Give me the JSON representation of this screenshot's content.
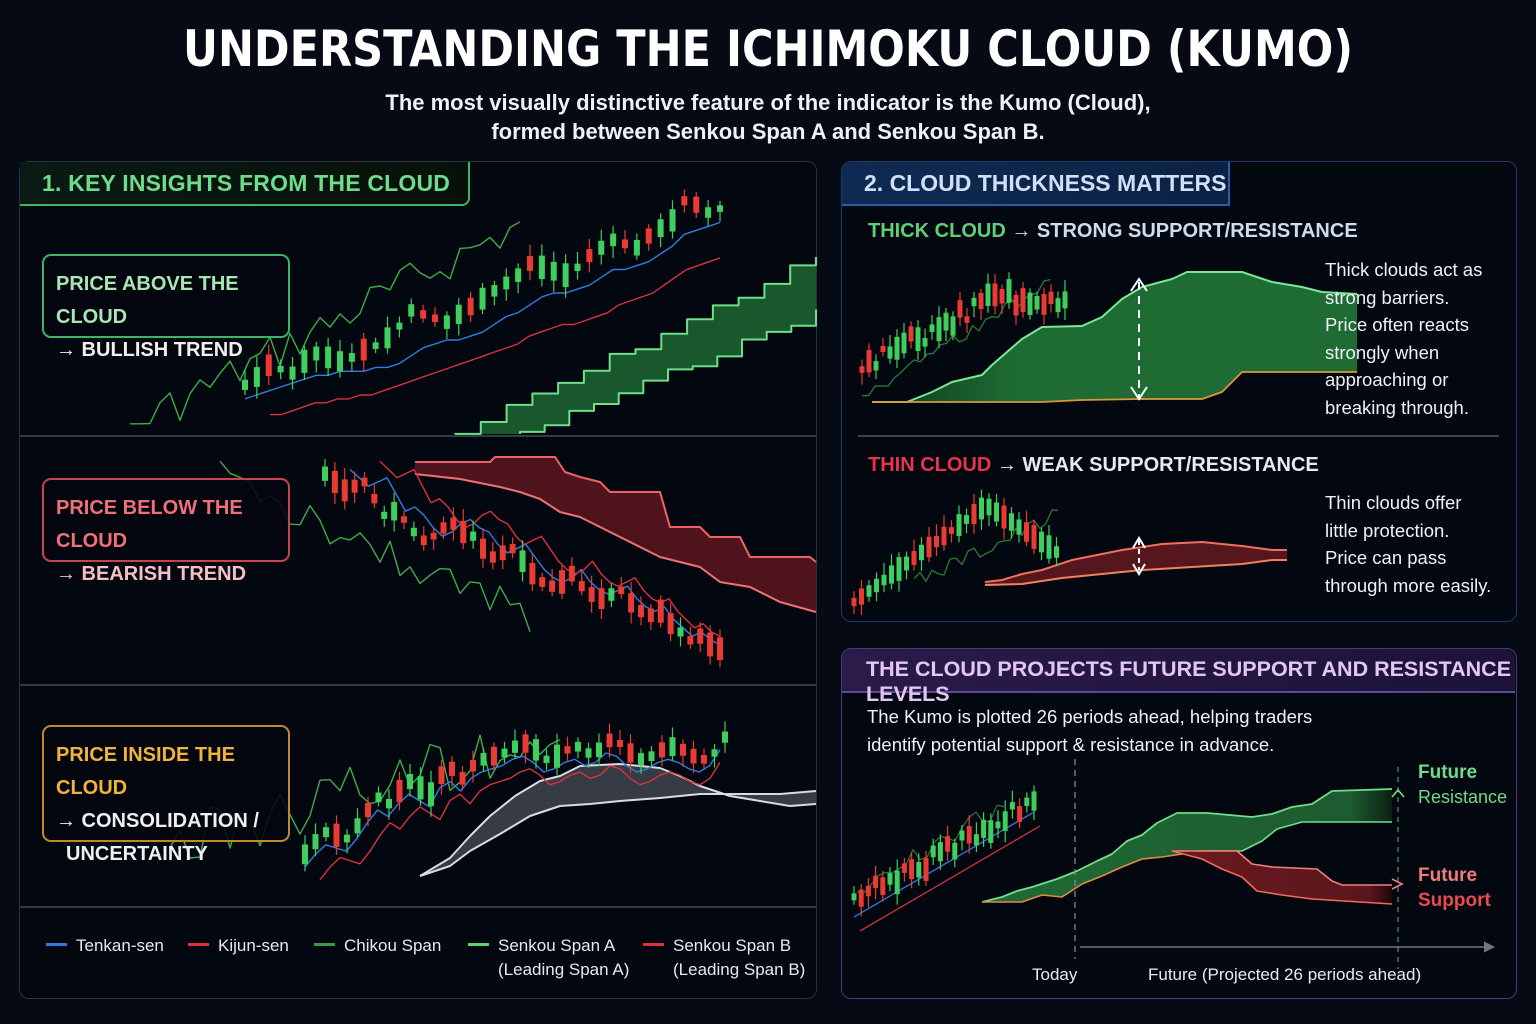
{
  "header": {
    "title": "UNDERSTANDING THE ICHIMOKU CLOUD (KUMO)",
    "subtitle_line1": "The most visually distinctive feature of the indicator is the Kumo (Cloud),",
    "subtitle_line2": "formed between Senkou Span A and Senkou Span B."
  },
  "section1": {
    "title": "1. KEY INSIGHTS FROM THE CLOUD",
    "insights": [
      {
        "line1": "PRICE ABOVE THE CLOUD",
        "line2": "→ BULLISH TREND",
        "color": "#a8e6b4",
        "border": "#3bb567"
      },
      {
        "line1": "PRICE BELOW THE CLOUD",
        "line2": "→ BEARISH TREND",
        "color": "#f0707a",
        "border": "#c7434e"
      },
      {
        "line1": "PRICE INSIDE THE CLOUD",
        "line2": "→ CONSOLIDATION /",
        "line3": "UNCERTAINTY",
        "color": "#f2b33a",
        "border": "#c08a2c"
      }
    ],
    "legend": [
      {
        "label": "Tenkan-sen",
        "color": "#2f7de1"
      },
      {
        "label": "Kijun-sen",
        "color": "#d8323e"
      },
      {
        "label": "Chikou Span",
        "color": "#3a9a4a"
      },
      {
        "label": "Senkou Span A",
        "sub": "(Leading Span A)",
        "color": "#5ccf77"
      },
      {
        "label": "Senkou Span B",
        "sub": "(Leading Span B)",
        "color": "#e0323e"
      }
    ]
  },
  "section2": {
    "title": "2. CLOUD THICKNESS MATTERS",
    "thick": {
      "heading_colored": "THICK CLOUD",
      "heading_rest": "→ STRONG SUPPORT/RESISTANCE",
      "desc": [
        "Thick clouds act as",
        "strong barriers.",
        "Price often reacts",
        "strongly when",
        "approaching or",
        "breaking through."
      ]
    },
    "thin": {
      "heading_colored": "THIN CLOUD",
      "heading_rest": "→ WEAK SUPPORT/RESISTANCE",
      "desc": [
        "Thin clouds offer",
        "little protection.",
        "Price can pass",
        "through more easily."
      ]
    }
  },
  "section3": {
    "title": "THE CLOUD PROJECTS FUTURE SUPPORT AND RESISTANCE LEVELS",
    "desc_line1": "The Kumo is plotted 26 periods ahead, helping traders",
    "desc_line2": "identify potential support & resistance in advance.",
    "today_label": "Today",
    "future_label": "Future (Projected 26 periods ahead)",
    "resistance_label_1": "Future",
    "resistance_label_2": "Resistance",
    "support_label_1": "Future",
    "support_label_2": "Support"
  },
  "colors": {
    "bull": "#3ecf5e",
    "bear": "#ea3a34",
    "tenkan": "#2f7de1",
    "kijun": "#d8323e",
    "chikou": "#3fae4a",
    "cloud_green": "#1f6b34",
    "cloud_red": "#6a1a20",
    "cloud_gray": "#4a4e58"
  },
  "chart_data": [
    {
      "type": "line",
      "title": "Price Above the Cloud — Bullish Trend",
      "note": "Illustrative candlestick + Ichimoku lines, trending upward; cloud (green) below price",
      "x": [
        0,
        1,
        2,
        3,
        4,
        5,
        6,
        7,
        8,
        9,
        10,
        11,
        12,
        13,
        14,
        15,
        16,
        17,
        18,
        19,
        20,
        21,
        22,
        23,
        24,
        25,
        26,
        27,
        28,
        29,
        30,
        31,
        32,
        33,
        34,
        35,
        36,
        37,
        38,
        39,
        40
      ],
      "series": [
        {
          "name": "Close",
          "values": [
            10,
            12,
            15,
            14,
            13,
            16,
            18,
            17,
            16,
            17,
            19,
            20,
            22,
            25,
            29,
            28,
            27,
            26,
            28,
            30,
            32,
            34,
            36,
            38,
            41,
            40,
            39,
            38,
            40,
            43,
            45,
            47,
            46,
            45,
            48,
            50,
            52,
            57,
            56,
            54,
            55
          ]
        },
        {
          "name": "Tenkan-sen",
          "values": [
            9,
            10,
            11,
            12,
            13,
            14,
            15,
            15,
            16,
            16,
            16,
            17,
            17,
            18,
            20,
            22,
            23,
            24,
            24,
            25,
            26,
            28,
            30,
            31,
            33,
            35,
            36,
            36,
            37,
            38,
            40,
            42,
            42,
            43,
            44,
            46,
            48,
            51,
            52,
            53,
            54
          ]
        },
        {
          "name": "Kijun-sen",
          "values": [
            7,
            7,
            8,
            9,
            10,
            10,
            11,
            11,
            12,
            12,
            13,
            14,
            15,
            16,
            17,
            18,
            19,
            20,
            21,
            22,
            23,
            24,
            25,
            27,
            28,
            29,
            30,
            30,
            31,
            32,
            33,
            35,
            36,
            37,
            38,
            40,
            42,
            44,
            45,
            46,
            47
          ]
        }
      ],
      "ylim": [
        0,
        60
      ]
    },
    {
      "type": "line",
      "title": "Price Below the Cloud — Bearish Trend",
      "note": "Illustrative downtrend with red cloud above price",
      "x": [
        0,
        1,
        2,
        3,
        4,
        5,
        6,
        7,
        8,
        9,
        10,
        11,
        12,
        13,
        14,
        15,
        16,
        17,
        18,
        19,
        20,
        21,
        22,
        23,
        24,
        25,
        26,
        27,
        28,
        29,
        30,
        31,
        32,
        33,
        34,
        35,
        36,
        37,
        38,
        39,
        40
      ],
      "series": [
        {
          "name": "Close",
          "values": [
            56,
            54,
            52,
            53,
            54,
            50,
            46,
            47,
            45,
            42,
            40,
            41,
            43,
            44,
            42,
            41,
            38,
            36,
            37,
            38,
            35,
            32,
            30,
            29,
            30,
            32,
            29,
            27,
            26,
            27,
            28,
            25,
            23,
            22,
            23,
            20,
            18,
            16,
            17,
            15,
            14
          ]
        }
      ],
      "ylim": [
        0,
        60
      ]
    },
    {
      "type": "line",
      "title": "Price Inside the Cloud — Consolidation / Uncertainty",
      "note": "Illustrative rise then sideways movement inside gray cloud",
      "x": [
        0,
        1,
        2,
        3,
        4,
        5,
        6,
        7,
        8,
        9,
        10,
        11,
        12,
        13,
        14,
        15,
        16,
        17,
        18,
        19,
        20,
        21,
        22,
        23,
        24,
        25,
        26,
        27,
        28,
        29,
        30,
        31,
        32,
        33,
        34,
        35,
        36,
        37,
        38,
        39,
        40
      ],
      "series": [
        {
          "name": "Close",
          "values": [
            10,
            14,
            17,
            16,
            15,
            19,
            24,
            28,
            26,
            30,
            33,
            31,
            29,
            35,
            37,
            34,
            38,
            40,
            41,
            42,
            44,
            45,
            43,
            40,
            41,
            43,
            44,
            42,
            43,
            46,
            45,
            42,
            40,
            41,
            43,
            44,
            43,
            41,
            40,
            42,
            47
          ]
        }
      ],
      "ylim": [
        0,
        60
      ]
    }
  ]
}
